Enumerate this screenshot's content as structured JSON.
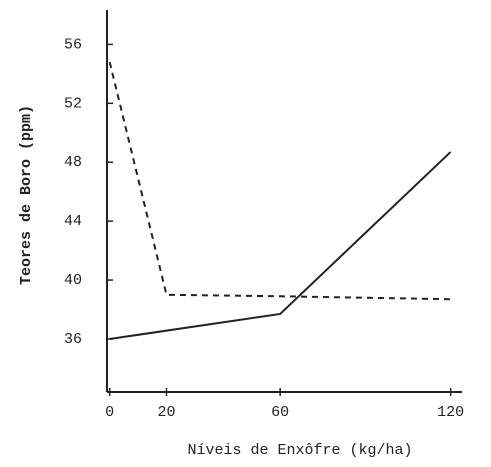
{
  "chart_data": {
    "type": "line",
    "xlabel": "Níveis de Enxôfre (kg/ha)",
    "ylabel": "Teores de Boro (ppm)",
    "xlim": [
      -2,
      124
    ],
    "xticks": [
      0,
      20,
      60,
      120
    ],
    "ylim": [
      32.4,
      58.2
    ],
    "yticks": [
      36,
      40,
      44,
      48,
      52,
      56
    ],
    "series": [
      {
        "color": "#222222",
        "linestyle": "solid",
        "x": [
          0,
          60,
          120
        ],
        "values": [
          36.0,
          37.7,
          48.7
        ]
      },
      {
        "color": "#222222",
        "linestyle": "dashed",
        "x": [
          0,
          20,
          60,
          120
        ],
        "values": [
          54.8,
          39.0,
          38.9,
          38.7
        ]
      }
    ]
  }
}
